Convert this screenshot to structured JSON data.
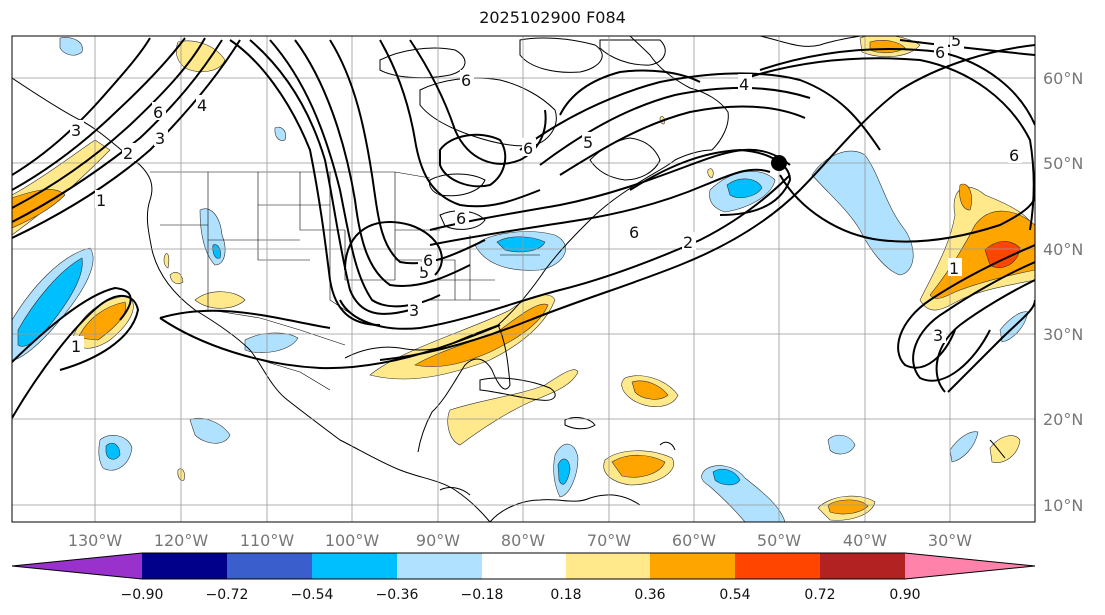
{
  "title": "2025102900 F084",
  "lon_labels": [
    "130°W",
    "120°W",
    "110°W",
    "100°W",
    "90°W",
    "80°W",
    "70°W",
    "60°W",
    "50°W",
    "40°W",
    "30°W"
  ],
  "lat_labels": [
    "60°N",
    "50°N",
    "40°N",
    "30°N",
    "20°N",
    "10°N"
  ],
  "colorbar": {
    "colors": [
      "#9932cc",
      "#00008b",
      "#3a5fcd",
      "#00bfff",
      "#b0e2ff",
      "#ffffff",
      "#ffe98b",
      "#ffa500",
      "#ff4500",
      "#b22222",
      "#ff82ab"
    ],
    "ticks": [
      "−0.90",
      "−0.72",
      "−0.54",
      "−0.36",
      "−0.18",
      "0.18",
      "0.36",
      "0.54",
      "0.72",
      "0.90"
    ]
  },
  "contour_labels": [
    "6",
    "4",
    "3",
    "6",
    "3",
    "2",
    "4",
    "5",
    "6",
    "5",
    "6",
    "5",
    "6",
    "3",
    "1",
    "6",
    "2",
    "1",
    "1",
    "3",
    "6",
    "6"
  ],
  "marker": {
    "name": "black dot"
  }
}
